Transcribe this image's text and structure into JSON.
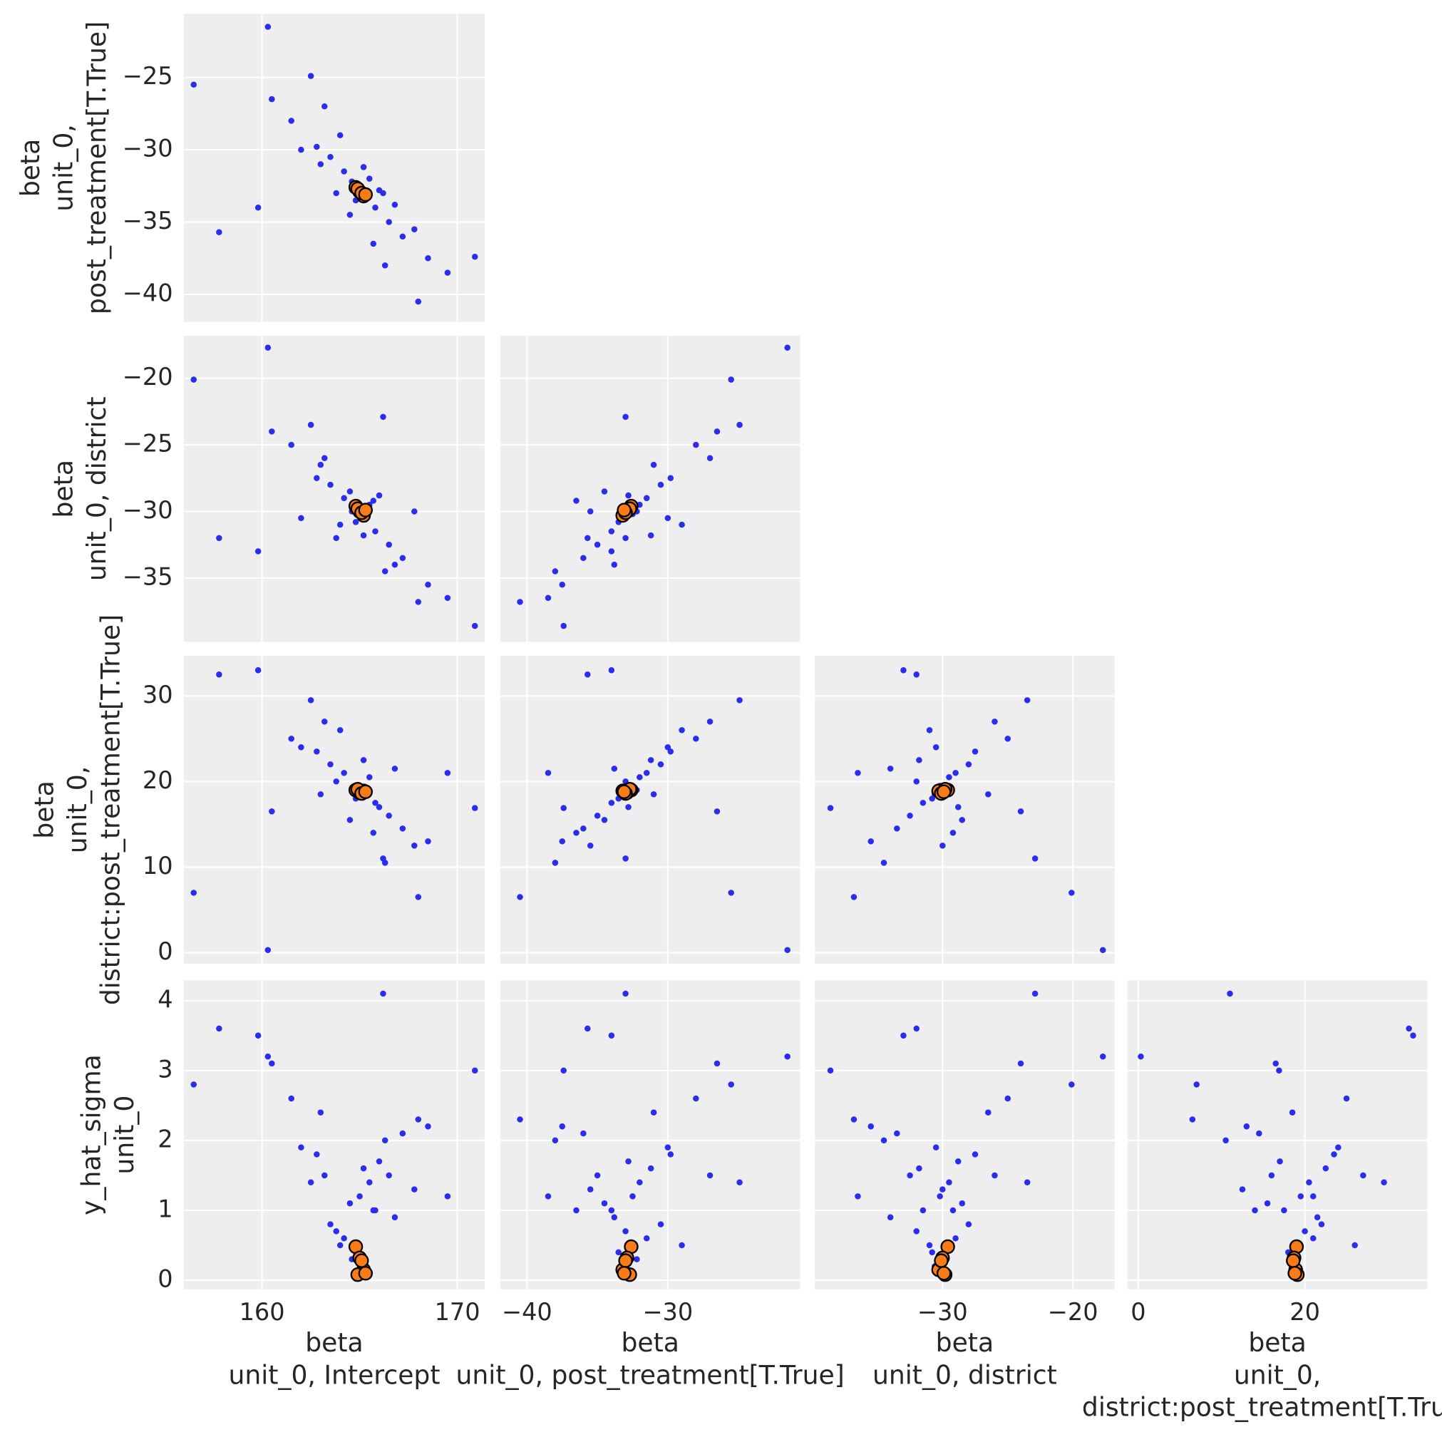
{
  "chart_data": {
    "type": "pair",
    "grid": true,
    "color": "#2a2eec",
    "reference_color": "#fa7c17",
    "variables": [
      {
        "xlabel": [
          "beta",
          "unit_0, Intercept"
        ],
        "lim": [
          156,
          171.4
        ],
        "xticks": [
          160,
          170
        ],
        "values": [
          165.0,
          163.5,
          166.5,
          164.2,
          165.8,
          162.8,
          167.2,
          164.8,
          165.5,
          163.0,
          166.8,
          161.5,
          168.5,
          164.5,
          165.2,
          162.0,
          167.8,
          163.8,
          166.0,
          164.0,
          165.7,
          160.5,
          169.5,
          163.2,
          166.3,
          164.6,
          165.3,
          156.5,
          170.9,
          160.3,
          166.2,
          159.8,
          157.8,
          168.0,
          162.5,
          165.0
        ],
        "reference_values": [
          164.8,
          165.0,
          165.2,
          164.9,
          165.1,
          165.3
        ]
      },
      {
        "xlabel": [
          "beta",
          "unit_0, post_treatment[T.True]"
        ],
        "ylabel": [
          "beta",
          "unit_0,",
          "post_treatment[T.True]"
        ],
        "lim": [
          -41.9,
          -20.6
        ],
        "xticks": [
          {
            "value": -40,
            "label": "−40"
          },
          {
            "value": -30,
            "label": "−30"
          }
        ],
        "yticks": [
          {
            "value": -40,
            "label": "−40"
          },
          {
            "value": -35,
            "label": "−35"
          },
          {
            "value": -30,
            "label": "−30"
          },
          {
            "value": -25,
            "label": "−25"
          }
        ],
        "values": [
          -32.5,
          -30.5,
          -35.0,
          -31.5,
          -34.0,
          -29.8,
          -36.0,
          -33.5,
          -32.0,
          -31.0,
          -33.8,
          -28.0,
          -37.5,
          -34.5,
          -31.2,
          -30.0,
          -35.5,
          -33.0,
          -32.8,
          -29.0,
          -36.5,
          -26.5,
          -38.5,
          -27.0,
          -38.0,
          -32.2,
          -33.2,
          -25.5,
          -37.4,
          -21.5,
          -33.0,
          -34.0,
          -35.7,
          -40.5,
          -24.9,
          -32.9
        ],
        "reference_values": [
          -32.6,
          -32.9,
          -33.2,
          -32.7,
          -33.0,
          -33.1
        ]
      },
      {
        "xlabel": [
          "beta",
          "unit_0, district"
        ],
        "ylabel": [
          "beta",
          "unit_0, district"
        ],
        "lim": [
          -39.8,
          -16.8
        ],
        "xticks": [
          {
            "value": -30,
            "label": "−30"
          },
          {
            "value": -20,
            "label": "−20"
          }
        ],
        "yticks": [
          {
            "value": -35,
            "label": "−35"
          },
          {
            "value": -30,
            "label": "−30"
          },
          {
            "value": -25,
            "label": "−25"
          },
          {
            "value": -20,
            "label": "−20"
          }
        ],
        "values": [
          -30.2,
          -28.0,
          -32.5,
          -29.0,
          -31.5,
          -27.5,
          -33.5,
          -30.8,
          -29.5,
          -26.5,
          -34.0,
          -25.0,
          -35.5,
          -28.5,
          -31.8,
          -30.5,
          -30.0,
          -32.0,
          -28.8,
          -31.0,
          -29.2,
          -24.0,
          -36.5,
          -26.0,
          -34.5,
          -30.0,
          -30.6,
          -20.1,
          -38.6,
          -17.7,
          -22.9,
          -33.0,
          -32.0,
          -36.8,
          -23.5,
          -30.1
        ],
        "reference_values": [
          -29.6,
          -30.0,
          -30.3,
          -29.8,
          -30.1,
          -29.9
        ]
      },
      {
        "xlabel": [
          "beta",
          "unit_0,",
          "district:post_treatment[T.True]"
        ],
        "ylabel": [
          "beta",
          "unit_0,",
          "district:post_treatment[T.True]"
        ],
        "lim": [
          -1.3,
          34.7
        ],
        "xticks": [
          0,
          20
        ],
        "yticks": [
          0,
          10,
          20,
          30
        ],
        "values": [
          19.5,
          22.0,
          16.0,
          21.0,
          17.5,
          23.5,
          14.5,
          18.0,
          20.5,
          18.5,
          21.5,
          25.0,
          13.0,
          15.5,
          22.5,
          24.0,
          12.5,
          20.0,
          17.0,
          26.0,
          14.0,
          16.5,
          21.0,
          27.0,
          10.5,
          19.0,
          18.5,
          7.0,
          16.9,
          0.3,
          11.0,
          33.0,
          32.5,
          6.5,
          29.5,
          19.0
        ],
        "reference_values": [
          19.0,
          18.7,
          18.9,
          19.1,
          18.6,
          18.8
        ]
      },
      {
        "ylabel": [
          "y_hat_sigma",
          "unit_0"
        ],
        "lim": [
          -0.13,
          4.29
        ],
        "yticks": [
          0,
          1,
          2,
          3,
          4
        ],
        "values": [
          1.2,
          0.8,
          1.5,
          0.6,
          1.0,
          1.8,
          2.1,
          0.4,
          1.4,
          2.4,
          0.9,
          2.6,
          2.2,
          1.1,
          1.6,
          1.9,
          1.3,
          0.7,
          1.7,
          0.5,
          1.0,
          3.1,
          1.2,
          1.5,
          2.0,
          0.3,
          0.2,
          2.8,
          3.0,
          3.2,
          4.1,
          3.5,
          3.6,
          2.3,
          1.4,
          0.1
        ],
        "reference_values": [
          0.48,
          0.32,
          0.15,
          0.08,
          0.28,
          0.1
        ]
      }
    ]
  }
}
